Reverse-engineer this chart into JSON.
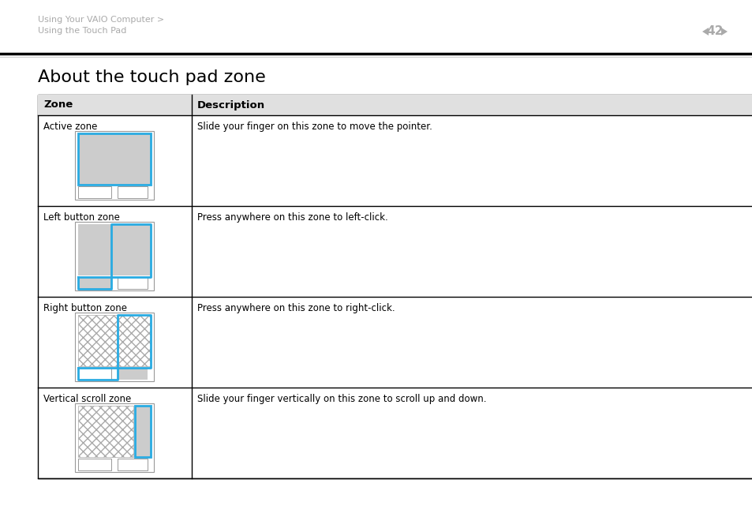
{
  "bg_color": "#ffffff",
  "breadcrumb_line1": "Using Your VAIO Computer >",
  "breadcrumb_line2": "Using the Touch Pad",
  "breadcrumb_color": "#aaaaaa",
  "page_num": "42",
  "page_arrow_color": "#aaaaaa",
  "title": "About the touch pad zone",
  "title_color": "#000000",
  "table_border_color": "#000000",
  "col1_header": "Zone",
  "col2_header": "Description",
  "rows": [
    {
      "zone_name": "Active zone",
      "description": "Slide your finger on this zone to move the pointer.",
      "image_type": "active"
    },
    {
      "zone_name": "Left button zone",
      "description": "Press anywhere on this zone to left-click.",
      "image_type": "left_button"
    },
    {
      "zone_name": "Right button zone",
      "description": "Press anywhere on this zone to right-click.",
      "image_type": "right_button"
    },
    {
      "zone_name": "Vertical scroll zone",
      "description": "Slide your finger vertically on this zone to scroll up and down.",
      "image_type": "vertical_scroll"
    }
  ],
  "cyan_color": "#29abe2",
  "light_gray": "#cccccc",
  "white": "#ffffff",
  "header_gray": "#e0e0e0"
}
